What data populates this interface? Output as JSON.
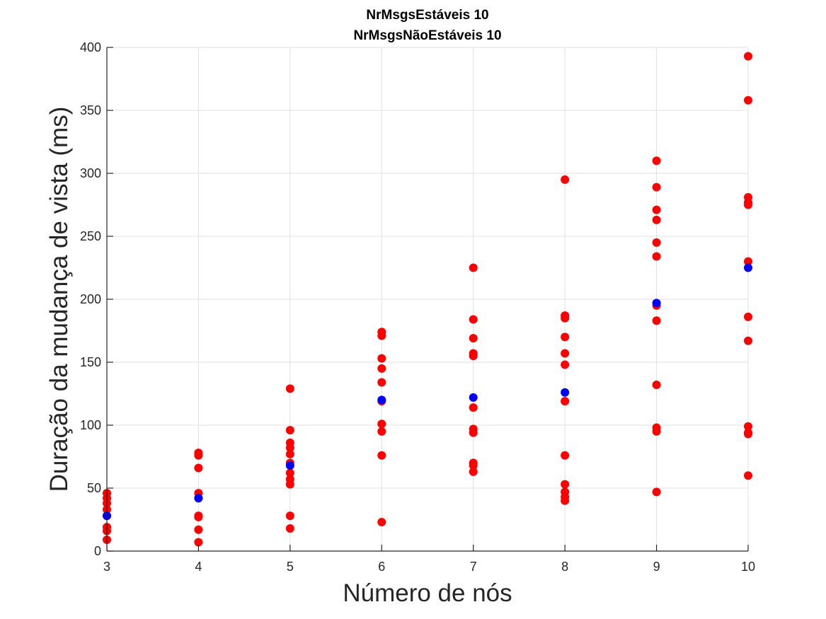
{
  "chart_data": {
    "type": "scatter",
    "title_lines": [
      "NrMsgsEstáveis 10",
      "NrMsgsNãoEstáveis 10"
    ],
    "xlabel": "Número de nós",
    "ylabel": "Duração da mudança de vista (ms)",
    "xlim": [
      3,
      10
    ],
    "ylim": [
      0,
      400
    ],
    "xticks": [
      3,
      4,
      5,
      6,
      7,
      8,
      9,
      10
    ],
    "yticks": [
      0,
      50,
      100,
      150,
      200,
      250,
      300,
      350,
      400
    ],
    "grid": true,
    "legend": "none",
    "colors": {
      "samples": "#ff0000",
      "mean": "#0000ff",
      "axis": "#262626",
      "grid": "#e0e0e0"
    },
    "series": [
      {
        "color": "#ff0000",
        "points": [
          [
            3,
            46
          ],
          [
            3,
            42
          ],
          [
            3,
            38
          ],
          [
            3,
            33
          ],
          [
            3,
            28
          ],
          [
            3,
            19
          ],
          [
            3,
            16
          ],
          [
            3,
            9
          ],
          [
            4,
            78
          ],
          [
            4,
            76
          ],
          [
            4,
            66
          ],
          [
            4,
            46
          ],
          [
            4,
            42
          ],
          [
            4,
            28
          ],
          [
            4,
            27
          ],
          [
            4,
            17
          ],
          [
            4,
            7
          ],
          [
            5,
            129
          ],
          [
            5,
            96
          ],
          [
            5,
            86
          ],
          [
            5,
            82
          ],
          [
            5,
            77
          ],
          [
            5,
            70
          ],
          [
            5,
            62
          ],
          [
            5,
            57
          ],
          [
            5,
            53
          ],
          [
            5,
            28
          ],
          [
            5,
            18
          ],
          [
            6,
            174
          ],
          [
            6,
            171
          ],
          [
            6,
            153
          ],
          [
            6,
            145
          ],
          [
            6,
            134
          ],
          [
            6,
            119
          ],
          [
            6,
            101
          ],
          [
            6,
            95
          ],
          [
            6,
            76
          ],
          [
            6,
            23
          ],
          [
            7,
            225
          ],
          [
            7,
            184
          ],
          [
            7,
            169
          ],
          [
            7,
            157
          ],
          [
            7,
            155
          ],
          [
            7,
            114
          ],
          [
            7,
            97
          ],
          [
            7,
            94
          ],
          [
            7,
            70
          ],
          [
            7,
            68
          ],
          [
            7,
            63
          ],
          [
            8,
            295
          ],
          [
            8,
            187
          ],
          [
            8,
            185
          ],
          [
            8,
            170
          ],
          [
            8,
            157
          ],
          [
            8,
            148
          ],
          [
            8,
            119
          ],
          [
            8,
            76
          ],
          [
            8,
            53
          ],
          [
            8,
            47
          ],
          [
            8,
            43
          ],
          [
            8,
            40
          ],
          [
            9,
            310
          ],
          [
            9,
            289
          ],
          [
            9,
            271
          ],
          [
            9,
            263
          ],
          [
            9,
            245
          ],
          [
            9,
            234
          ],
          [
            9,
            195
          ],
          [
            9,
            183
          ],
          [
            9,
            132
          ],
          [
            9,
            98
          ],
          [
            9,
            95
          ],
          [
            9,
            47
          ],
          [
            10,
            393
          ],
          [
            10,
            358
          ],
          [
            10,
            281
          ],
          [
            10,
            277
          ],
          [
            10,
            275
          ],
          [
            10,
            230
          ],
          [
            10,
            186
          ],
          [
            10,
            167
          ],
          [
            10,
            99
          ],
          [
            10,
            94
          ],
          [
            10,
            93
          ],
          [
            10,
            60
          ]
        ]
      },
      {
        "color": "#0000ff",
        "points": [
          [
            3,
            28
          ],
          [
            4,
            42
          ],
          [
            5,
            68
          ],
          [
            6,
            120
          ],
          [
            7,
            122
          ],
          [
            8,
            126
          ],
          [
            9,
            197
          ],
          [
            10,
            225
          ]
        ]
      }
    ]
  }
}
